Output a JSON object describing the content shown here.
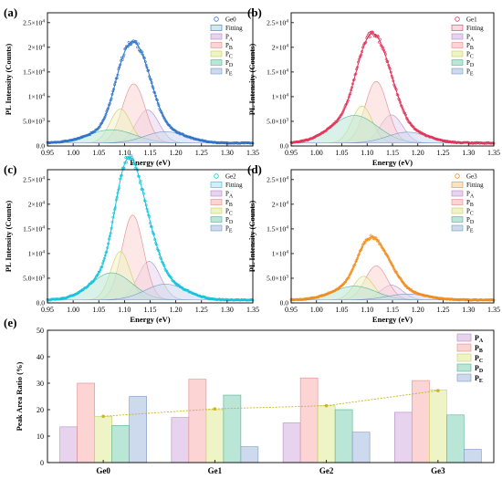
{
  "chart_data": [
    {
      "type": "line",
      "panel_label": "(a)",
      "sample": "Ge0",
      "xlabel": "Energy (eV)",
      "ylabel": "PL Intensity (Counts)",
      "xlim": [
        0.95,
        1.35
      ],
      "ylim": [
        0,
        27000
      ],
      "x_ticks": [
        "0.95",
        "1.00",
        "1.05",
        "1.10",
        "1.15",
        "1.20",
        "1.25",
        "1.30",
        "1.35"
      ],
      "y_ticks": [
        {
          "v": 0,
          "m": "0.0",
          "e": ""
        },
        {
          "v": 5000,
          "m": "5.0×10",
          "e": "3"
        },
        {
          "v": 10000,
          "m": "1×10",
          "e": "4"
        },
        {
          "v": 15000,
          "m": "1.5×10",
          "e": "4"
        },
        {
          "v": 20000,
          "m": "2×10",
          "e": "4"
        },
        {
          "v": 25000,
          "m": "2.5×10",
          "e": "4"
        }
      ],
      "baseline": 600,
      "color": "#2f73c8",
      "fill": "#d6e6f7",
      "legend": [
        {
          "label": "Ge0",
          "kind": "marker"
        },
        {
          "label": "Fitting",
          "kind": "box"
        },
        {
          "label": "P",
          "sub": "A",
          "kind": "box"
        },
        {
          "label": "P",
          "sub": "B",
          "kind": "box"
        },
        {
          "label": "P",
          "sub": "C",
          "kind": "box"
        },
        {
          "label": "P",
          "sub": "D",
          "kind": "box"
        },
        {
          "label": "P",
          "sub": "E",
          "kind": "box"
        }
      ],
      "peaks": [
        {
          "name": "PA",
          "center": 1.145,
          "height": 6700,
          "width": 0.022
        },
        {
          "name": "PB",
          "center": 1.118,
          "height": 12000,
          "width": 0.022
        },
        {
          "name": "PC",
          "center": 1.092,
          "height": 6900,
          "width": 0.02
        },
        {
          "name": "PD",
          "center": 1.075,
          "height": 2700,
          "width": 0.045
        },
        {
          "name": "PE",
          "center": 1.18,
          "height": 2300,
          "width": 0.04
        }
      ]
    },
    {
      "type": "line",
      "panel_label": "(b)",
      "sample": "Ge1",
      "xlabel": "Energy (eV)",
      "ylabel": "PL Intensity (Counts)",
      "xlim": [
        0.95,
        1.35
      ],
      "ylim": [
        0,
        27000
      ],
      "x_ticks": [
        "0.95",
        "1.00",
        "1.05",
        "1.10",
        "1.15",
        "1.20",
        "1.25",
        "1.30",
        "1.35"
      ],
      "y_ticks": [
        {
          "v": 0,
          "m": "0.0",
          "e": ""
        },
        {
          "v": 5000,
          "m": "5.0×10",
          "e": "3"
        },
        {
          "v": 10000,
          "m": "1×10",
          "e": "4"
        },
        {
          "v": 15000,
          "m": "1.5×10",
          "e": "4"
        },
        {
          "v": 20000,
          "m": "2×10",
          "e": "4"
        },
        {
          "v": 25000,
          "m": "2.5×10",
          "e": "4"
        }
      ],
      "baseline": 600,
      "color": "#e0345a",
      "fill": "#fad9e0",
      "legend": [
        {
          "label": "Ge1",
          "kind": "marker"
        },
        {
          "label": "Fitting",
          "kind": "box"
        },
        {
          "label": "P",
          "sub": "A",
          "kind": "box"
        },
        {
          "label": "P",
          "sub": "B",
          "kind": "box"
        },
        {
          "label": "P",
          "sub": "C",
          "kind": "box"
        },
        {
          "label": "P",
          "sub": "D",
          "kind": "box"
        },
        {
          "label": "P",
          "sub": "E",
          "kind": "box"
        }
      ],
      "peaks": [
        {
          "name": "PA",
          "center": 1.148,
          "height": 5700,
          "width": 0.022
        },
        {
          "name": "PB",
          "center": 1.118,
          "height": 12500,
          "width": 0.022
        },
        {
          "name": "PC",
          "center": 1.09,
          "height": 7500,
          "width": 0.02
        },
        {
          "name": "PD",
          "center": 1.075,
          "height": 5600,
          "width": 0.045
        },
        {
          "name": "PE",
          "center": 1.18,
          "height": 2200,
          "width": 0.04
        }
      ]
    },
    {
      "type": "line",
      "panel_label": "(c)",
      "sample": "Ge2",
      "xlabel": "Energy (eV)",
      "ylabel": "PL Intensity (Counts)",
      "xlim": [
        0.95,
        1.35
      ],
      "ylim": [
        0,
        27000
      ],
      "x_ticks": [
        "0.95",
        "1.00",
        "1.05",
        "1.10",
        "1.15",
        "1.20",
        "1.25",
        "1.30",
        "1.35"
      ],
      "y_ticks": [
        {
          "v": 0,
          "m": "0.0",
          "e": ""
        },
        {
          "v": 5000,
          "m": "5.0×10",
          "e": "3"
        },
        {
          "v": 10000,
          "m": "1×10",
          "e": "4"
        },
        {
          "v": 15000,
          "m": "1.5×10",
          "e": "4"
        },
        {
          "v": 20000,
          "m": "2×10",
          "e": "4"
        },
        {
          "v": 25000,
          "m": "2.5×10",
          "e": "4"
        }
      ],
      "baseline": 600,
      "color": "#12c4dc",
      "fill": "#cdf1f6",
      "legend": [
        {
          "label": "Ge2",
          "kind": "marker"
        },
        {
          "label": "Fitting",
          "kind": "box"
        },
        {
          "label": "P",
          "sub": "A",
          "kind": "box"
        },
        {
          "label": "P",
          "sub": "B",
          "kind": "box"
        },
        {
          "label": "P",
          "sub": "C",
          "kind": "box"
        },
        {
          "label": "P",
          "sub": "D",
          "kind": "box"
        },
        {
          "label": "P",
          "sub": "E",
          "kind": "box"
        }
      ],
      "peaks": [
        {
          "name": "PA",
          "center": 1.148,
          "height": 7800,
          "width": 0.022
        },
        {
          "name": "PB",
          "center": 1.116,
          "height": 17200,
          "width": 0.021
        },
        {
          "name": "PC",
          "center": 1.092,
          "height": 9800,
          "width": 0.019
        },
        {
          "name": "PD",
          "center": 1.075,
          "height": 5500,
          "width": 0.04
        },
        {
          "name": "PE",
          "center": 1.18,
          "height": 3200,
          "width": 0.04
        }
      ]
    },
    {
      "type": "line",
      "panel_label": "(d)",
      "sample": "Ge3",
      "xlabel": "Energy (eV)",
      "ylabel": "PL Intensity (Counts)",
      "xlim": [
        0.95,
        1.35
      ],
      "ylim": [
        0,
        27000
      ],
      "x_ticks": [
        "0.95",
        "1.00",
        "1.05",
        "1.10",
        "1.15",
        "1.20",
        "1.25",
        "1.30",
        "1.35"
      ],
      "y_ticks": [
        {
          "v": 0,
          "m": "0.0",
          "e": ""
        },
        {
          "v": 5000,
          "m": "5.0×10",
          "e": "3"
        },
        {
          "v": 10000,
          "m": "1×10",
          "e": "4"
        },
        {
          "v": 15000,
          "m": "1.5×10",
          "e": "4"
        },
        {
          "v": 20000,
          "m": "2×10",
          "e": "4"
        },
        {
          "v": 25000,
          "m": "2.5×10",
          "e": "4"
        }
      ],
      "baseline": 600,
      "color": "#f28c1b",
      "fill": "#fde3c6",
      "legend": [
        {
          "label": "Ge3",
          "kind": "marker"
        },
        {
          "label": "Fitting",
          "kind": "box"
        },
        {
          "label": "P",
          "sub": "A",
          "kind": "box"
        },
        {
          "label": "P",
          "sub": "B",
          "kind": "box"
        },
        {
          "label": "P",
          "sub": "C",
          "kind": "box"
        },
        {
          "label": "P",
          "sub": "D",
          "kind": "box"
        },
        {
          "label": "P",
          "sub": "E",
          "kind": "box"
        }
      ],
      "peaks": [
        {
          "name": "PA",
          "center": 1.148,
          "height": 3000,
          "width": 0.022
        },
        {
          "name": "PB",
          "center": 1.118,
          "height": 6900,
          "width": 0.022
        },
        {
          "name": "PC",
          "center": 1.093,
          "height": 4800,
          "width": 0.02
        },
        {
          "name": "PD",
          "center": 1.075,
          "height": 2800,
          "width": 0.042
        },
        {
          "name": "PE",
          "center": 1.18,
          "height": 1200,
          "width": 0.04
        }
      ]
    },
    {
      "type": "bar",
      "panel_label": "(e)",
      "categories": [
        "Ge0",
        "Ge1",
        "Ge2",
        "Ge3"
      ],
      "ylabel": "Peak Area Ratio (%)",
      "ylim": [
        0,
        50
      ],
      "y_ticks": [
        "0",
        "10",
        "20",
        "30",
        "40",
        "50"
      ],
      "series": [
        {
          "name": "P",
          "sub": "A",
          "values": [
            13.5,
            17,
            15,
            19
          ]
        },
        {
          "name": "P",
          "sub": "B",
          "values": [
            30,
            31.5,
            32,
            31
          ]
        },
        {
          "name": "P",
          "sub": "C",
          "values": [
            17.5,
            20,
            21.5,
            27.5
          ]
        },
        {
          "name": "P",
          "sub": "D",
          "values": [
            14,
            25.5,
            20,
            18
          ]
        },
        {
          "name": "P",
          "sub": "E",
          "values": [
            25,
            6,
            11.5,
            5
          ]
        }
      ],
      "trend_values": [
        17.5,
        20.3,
        21.5,
        27.2
      ],
      "trend_color": "#c9b51c",
      "legend_position": "top-right"
    }
  ],
  "colors": {
    "PA": "#e8d3ee",
    "PB": "#fcd4d4",
    "PC": "#eef4c6",
    "PD": "#b9e6d6",
    "PE": "#cdd9ec",
    "PA_line": "#b48ac2",
    "PB_line": "#e58a8a",
    "PC_line": "#c9cf5e",
    "PD_line": "#53b394",
    "PE_line": "#7a97c6"
  }
}
